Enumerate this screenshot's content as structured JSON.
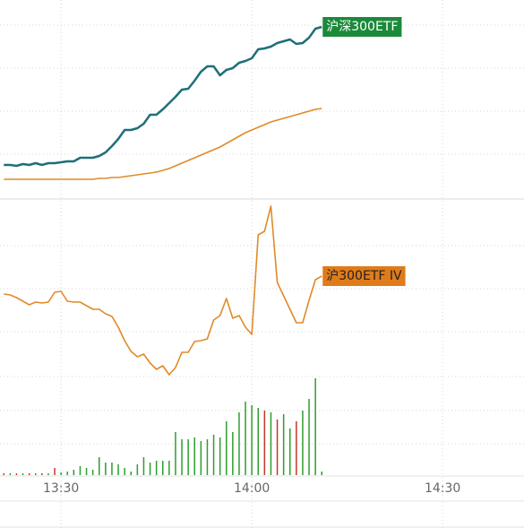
{
  "chart_data": [
    {
      "type": "line",
      "x": [
        801,
        802,
        803,
        804,
        805,
        806,
        807,
        808,
        809,
        810,
        811,
        812,
        813,
        814,
        815,
        816,
        817,
        818,
        819,
        820,
        821,
        822,
        823,
        824,
        825,
        826,
        827,
        828,
        829,
        830,
        831,
        832,
        833,
        834,
        835,
        836,
        837,
        838,
        839,
        840,
        841,
        842,
        843,
        844,
        845,
        846,
        847,
        848,
        849,
        850,
        851
      ],
      "xlim": [
        800.4,
        882.8
      ],
      "ylim": [
        0,
        222
      ],
      "series": [
        {
          "name": "沪深300ETF",
          "color": "#1f6f78",
          "values": [
            38,
            38,
            37,
            39,
            38,
            40,
            38,
            40,
            40,
            41,
            42,
            42,
            46,
            46,
            46,
            48,
            52,
            59,
            67,
            77,
            77,
            79,
            84,
            94,
            94,
            100,
            107,
            114,
            122,
            123,
            132,
            142,
            148,
            148,
            138,
            144,
            146,
            152,
            154,
            157,
            167,
            168,
            170,
            174,
            176,
            178,
            173,
            174,
            180,
            190,
            192
          ]
        },
        {
          "color": "#e08a2a",
          "values": [
            22,
            22,
            22,
            22,
            22,
            22,
            22,
            22,
            22,
            22,
            22,
            22,
            22,
            22,
            22,
            23,
            23,
            24,
            24,
            25,
            26,
            27,
            28,
            29,
            30,
            32,
            34,
            37,
            40,
            43,
            46,
            49,
            52,
            55,
            58,
            62,
            66,
            70,
            74,
            77,
            80,
            83,
            86,
            88,
            90,
            92,
            94,
            96,
            98,
            100,
            101
          ]
        }
      ]
    },
    {
      "type": "line",
      "x": [
        801,
        802,
        803,
        804,
        805,
        806,
        807,
        808,
        809,
        810,
        811,
        812,
        813,
        814,
        815,
        816,
        817,
        818,
        819,
        820,
        821,
        822,
        823,
        824,
        825,
        826,
        827,
        828,
        829,
        830,
        831,
        832,
        833,
        834,
        835,
        836,
        837,
        838,
        839,
        840,
        841,
        842,
        843,
        844,
        845,
        846,
        847,
        848,
        849,
        850,
        851
      ],
      "xlim": [
        800.4,
        882.8
      ],
      "ylim": [
        0,
        198
      ],
      "series": [
        {
          "name": "沪300ETF IV",
          "color": "#e08a2a",
          "values": [
            92,
            91,
            88,
            84,
            80,
            83,
            82,
            83,
            94,
            95,
            84,
            83,
            83,
            79,
            75,
            75,
            70,
            67,
            55,
            40,
            28,
            22,
            25,
            15,
            8,
            12,
            2,
            10,
            27,
            27,
            39,
            40,
            42,
            63,
            68,
            87,
            65,
            68,
            55,
            47,
            158,
            162,
            190,
            105,
            90,
            75,
            60,
            60,
            85,
            108,
            112
          ]
        }
      ]
    },
    {
      "type": "bar",
      "x": [
        801,
        802,
        803,
        804,
        805,
        806,
        807,
        808,
        809,
        810,
        811,
        812,
        813,
        814,
        815,
        816,
        817,
        818,
        819,
        820,
        821,
        822,
        823,
        824,
        825,
        826,
        827,
        828,
        829,
        830,
        831,
        832,
        833,
        834,
        835,
        836,
        837,
        838,
        839,
        840,
        841,
        842,
        843,
        844,
        845,
        846,
        847,
        848,
        849,
        850,
        851
      ],
      "xlim": [
        800.4,
        882.8
      ],
      "ylim": [
        0,
        110
      ],
      "xticks": [
        {
          "value": 810,
          "label": "13:30"
        },
        {
          "value": 840,
          "label": "14:00"
        },
        {
          "value": 870,
          "label": "14:30"
        }
      ],
      "values": [
        2,
        2,
        2,
        2,
        2,
        2,
        2,
        2,
        8,
        3,
        4,
        6,
        10,
        8,
        6,
        20,
        14,
        14,
        12,
        8,
        4,
        12,
        20,
        14,
        16,
        16,
        16,
        48,
        40,
        40,
        42,
        38,
        40,
        45,
        42,
        60,
        48,
        70,
        82,
        78,
        75,
        72,
        70,
        62,
        68,
        52,
        60,
        72,
        85,
        108,
        4
      ],
      "colors": [
        "#c0392b",
        "#2e9e2e",
        "#c0392b",
        "#2e9e2e",
        "#c0392b",
        "#2e9e2e",
        "#c0392b",
        "#2e9e2e",
        "#c0392b",
        "#2e9e2e",
        "#2e9e2e",
        "#2e9e2e",
        "#2e9e2e",
        "#2e9e2e",
        "#2e9e2e",
        "#2e9e2e",
        "#2e9e2e",
        "#2e9e2e",
        "#2e9e2e",
        "#2e9e2e",
        "#2e9e2e",
        "#2e9e2e",
        "#2e9e2e",
        "#2e9e2e",
        "#2e9e2e",
        "#2e9e2e",
        "#2e9e2e",
        "#2e9e2e",
        "#2e9e2e",
        "#2e9e2e",
        "#2e9e2e",
        "#2e9e2e",
        "#2e9e2e",
        "#2e9e2e",
        "#2e9e2e",
        "#2e9e2e",
        "#2e9e2e",
        "#2e9e2e",
        "#2e9e2e",
        "#2e9e2e",
        "#2e9e2e",
        "#c0392b",
        "#2e9e2e",
        "#c0392b",
        "#2e9e2e",
        "#2e9e2e",
        "#c0392b",
        "#2e9e2e",
        "#2e9e2e",
        "#2e9e2e",
        "#2e9e2e"
      ]
    }
  ]
}
